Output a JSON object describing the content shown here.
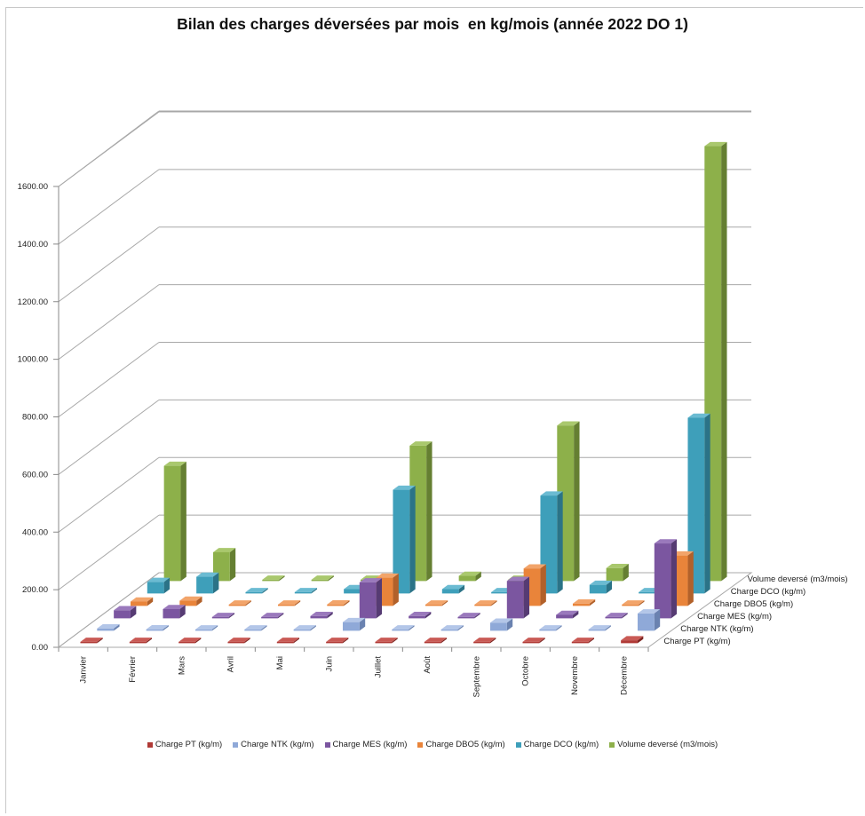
{
  "chart_data": {
    "type": "bar",
    "subtype": "3d-column",
    "title": "Bilan des charges déversées par mois  en kg/mois (année 2022 DO 1)",
    "categories": [
      "Janvier",
      "Février",
      "Mars",
      "Avril",
      "Mai",
      "Juin",
      "Juillet",
      "Août",
      "Septembre",
      "Octobre",
      "Novembre",
      "Décembre"
    ],
    "series": [
      {
        "name": "Charge PT (kg/m)",
        "color": "#B03A36",
        "side": "#7E2622",
        "top": "#C95A55",
        "values": [
          1,
          1,
          1,
          1,
          1,
          3,
          1,
          1,
          2,
          1,
          1,
          10
        ]
      },
      {
        "name": "Charge NTK (kg/m)",
        "color": "#8FA9D8",
        "side": "#6A82B0",
        "top": "#B3C6E8",
        "values": [
          8,
          5,
          3,
          3,
          3,
          30,
          3,
          3,
          28,
          3,
          3,
          60
        ]
      },
      {
        "name": "Charge MES (kg/m)",
        "color": "#7B56A0",
        "side": "#563B73",
        "top": "#9A79BC",
        "values": [
          28,
          32,
          3,
          3,
          8,
          125,
          8,
          3,
          130,
          12,
          3,
          260
        ]
      },
      {
        "name": "Charge DBO5 (kg/m)",
        "color": "#E9843A",
        "side": "#B2612A",
        "top": "#F2A46A",
        "values": [
          15,
          18,
          3,
          3,
          5,
          98,
          3,
          3,
          130,
          8,
          3,
          175
        ]
      },
      {
        "name": "Charge DCO (kg/m)",
        "color": "#3E9FBA",
        "side": "#2B7387",
        "top": "#6BBBD2",
        "values": [
          40,
          58,
          3,
          3,
          15,
          360,
          15,
          3,
          340,
          30,
          3,
          610
        ]
      },
      {
        "name": "Volume deversé (m3/mois)",
        "color": "#8DB04A",
        "side": "#657F32",
        "top": "#A9C86D",
        "values": [
          400,
          100,
          3,
          3,
          3,
          470,
          18,
          3,
          540,
          45,
          3,
          1510
        ]
      }
    ],
    "ylim": [
      0,
      1600
    ],
    "yticks": [
      "0.00",
      "200.00",
      "400.00",
      "600.00",
      "800.00",
      "1000.00",
      "1200.00",
      "1400.00",
      "1600.00"
    ],
    "grid": true,
    "legend_position": "bottom"
  }
}
